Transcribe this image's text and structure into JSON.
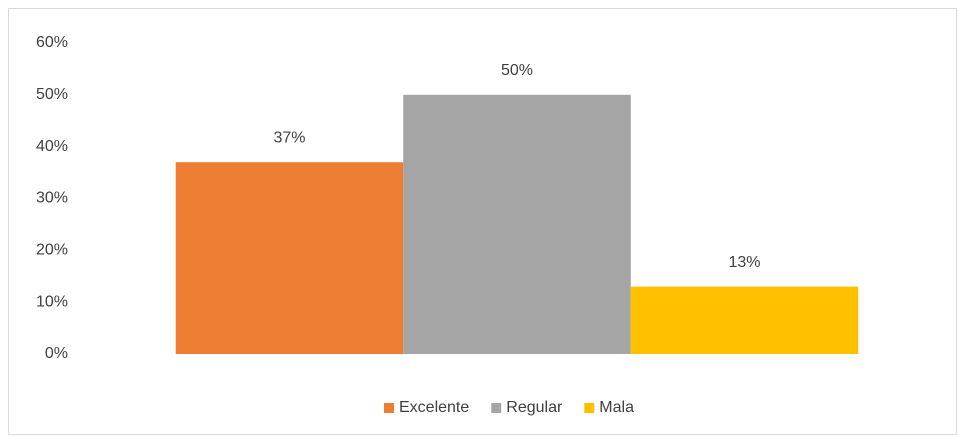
{
  "chart_data": {
    "type": "bar",
    "categories": [
      null
    ],
    "series": [
      {
        "name": "Excelente",
        "color": "#ed7d31",
        "values": [
          37
        ],
        "value_labels": [
          "37%"
        ]
      },
      {
        "name": "Regular",
        "color": "#a5a5a5",
        "values": [
          50
        ],
        "value_labels": [
          "50%"
        ]
      },
      {
        "name": "Mala",
        "color": "#ffc000",
        "values": [
          13
        ],
        "value_labels": [
          "13%"
        ]
      }
    ],
    "ylim": [
      0,
      60
    ],
    "yticks": [
      {
        "value": 0,
        "label": "0%"
      },
      {
        "value": 10,
        "label": "10%"
      },
      {
        "value": 20,
        "label": "20%"
      },
      {
        "value": 30,
        "label": "30%"
      },
      {
        "value": 40,
        "label": "40%"
      },
      {
        "value": 50,
        "label": "50%"
      },
      {
        "value": 60,
        "label": "60%"
      }
    ],
    "grid": false,
    "legend": "bottom"
  }
}
